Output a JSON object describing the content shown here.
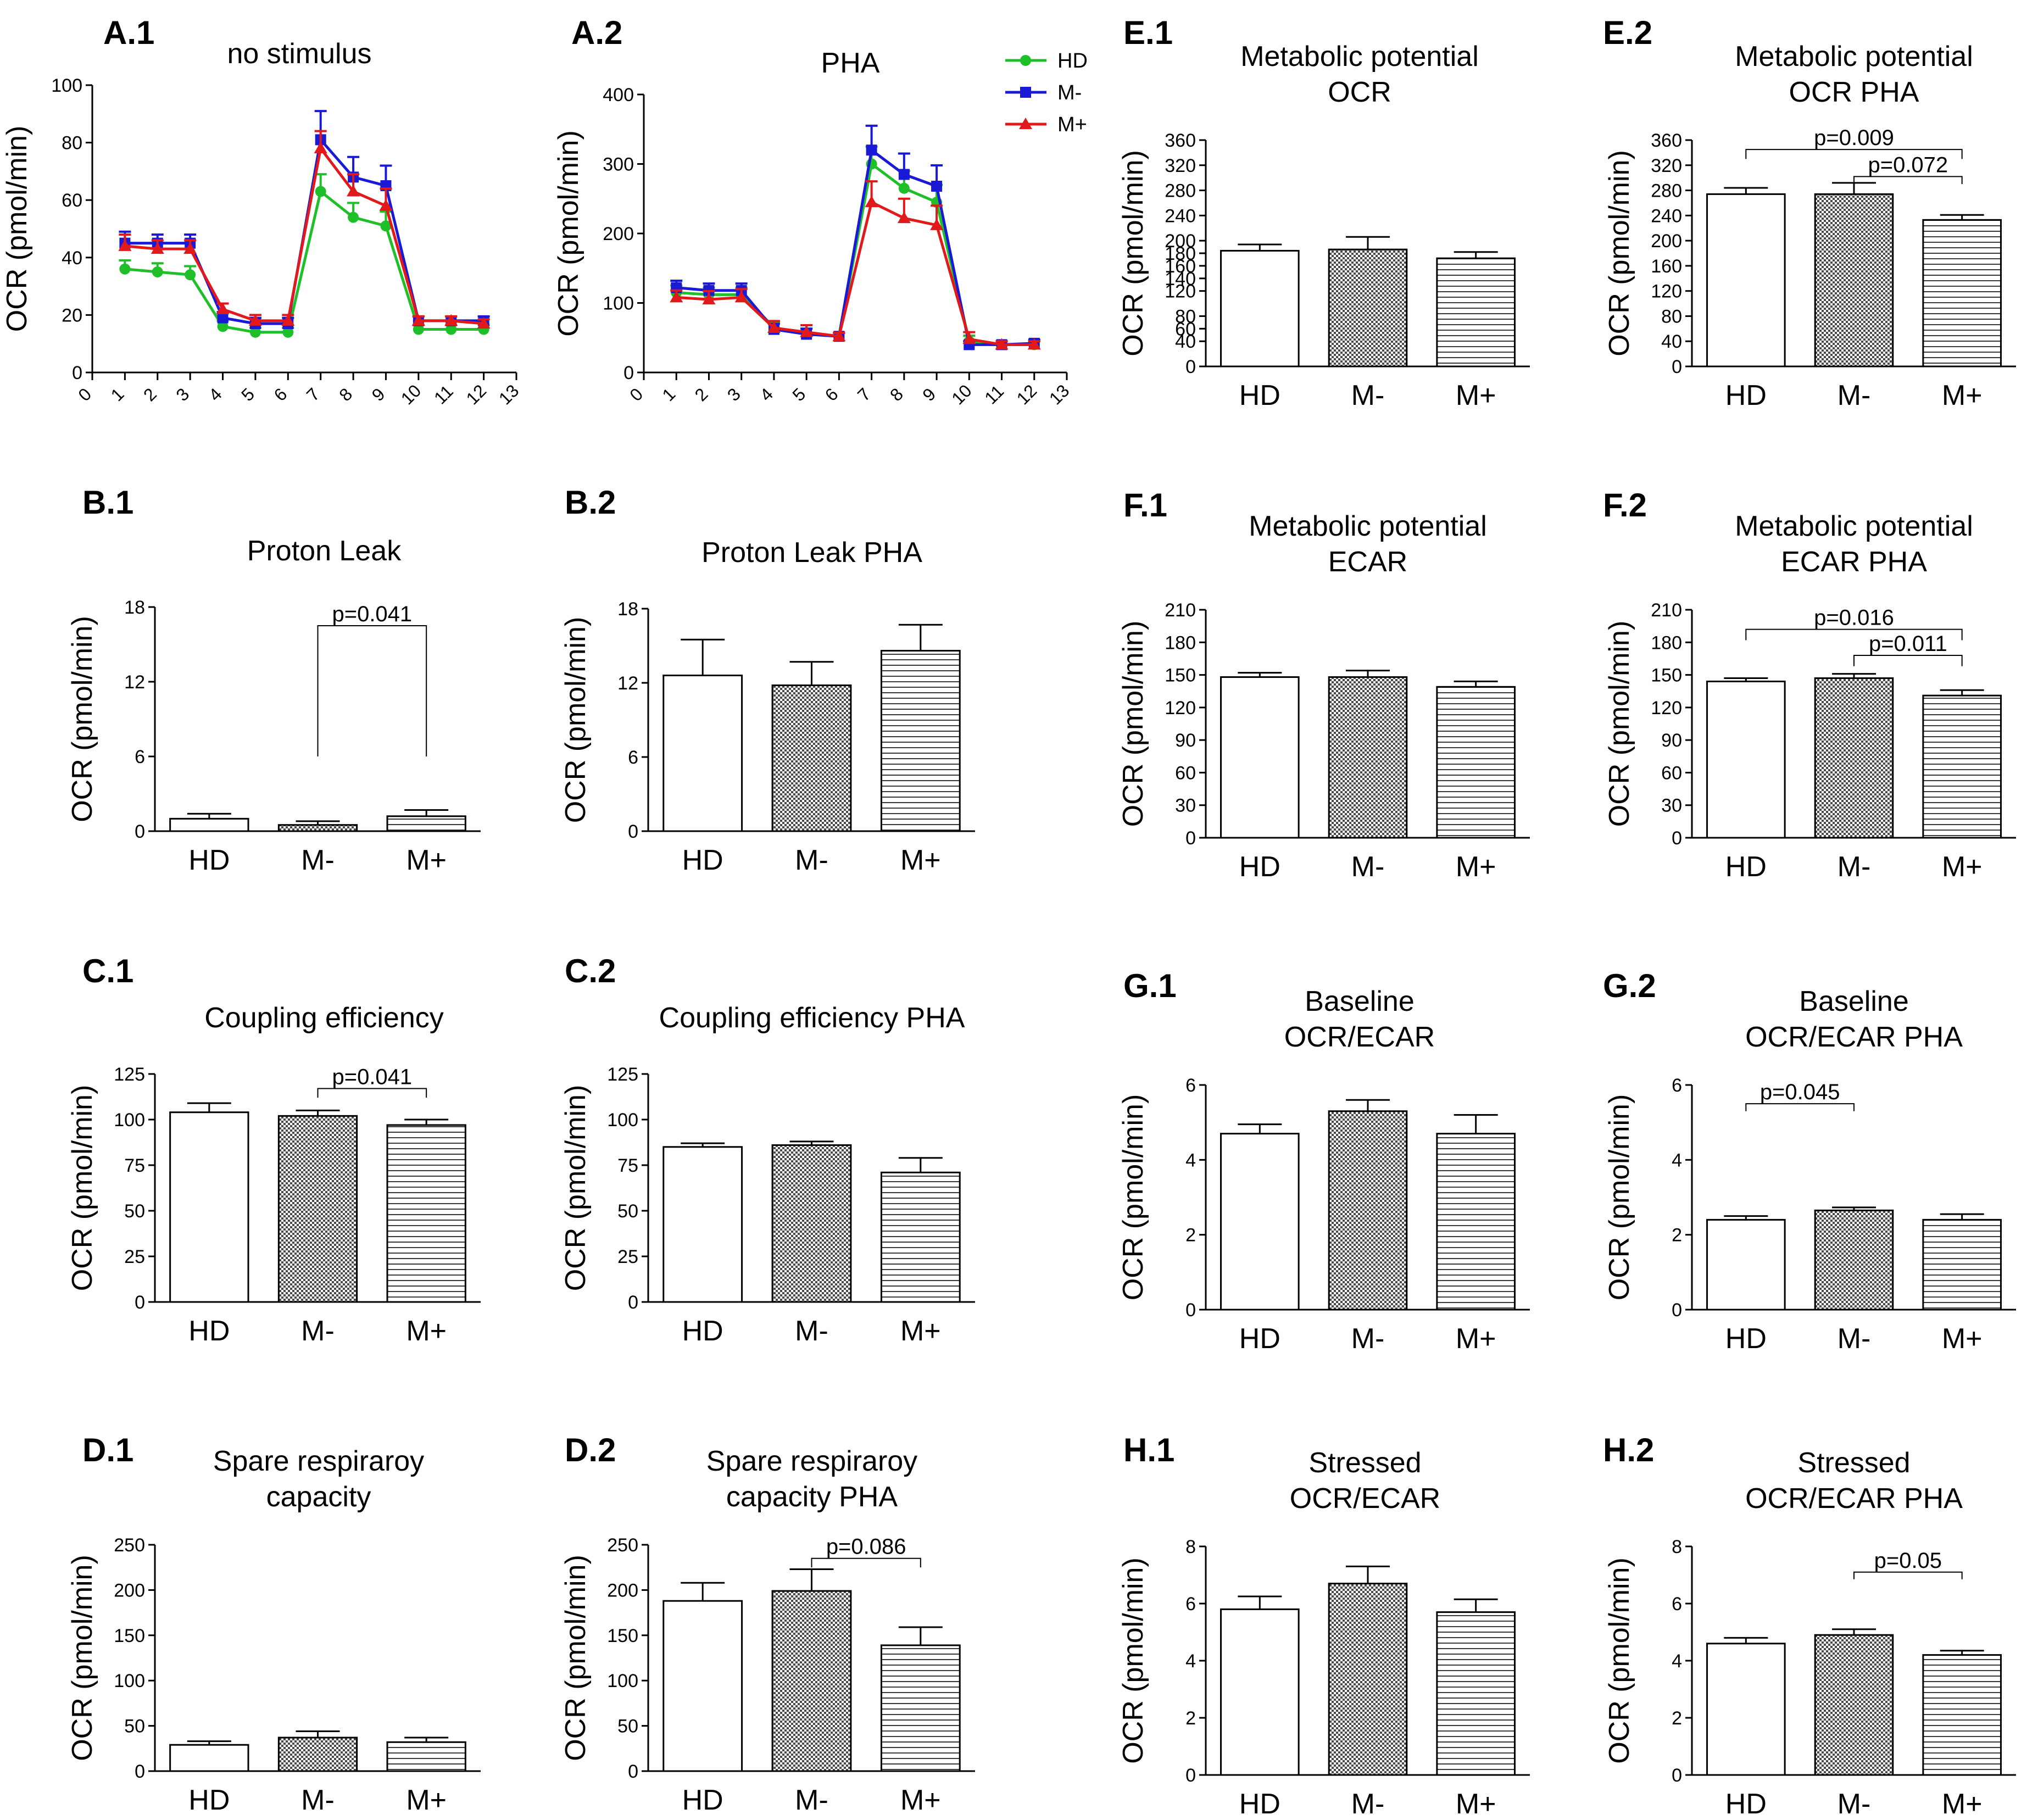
{
  "figure": {
    "colors": {
      "HD": "#1fbf2a",
      "M-": "#1a1ad6",
      "M+": "#e2191b",
      "axis": "#000000"
    },
    "groups": [
      "HD",
      "M-",
      "M+"
    ]
  },
  "chart_data": [
    {
      "id": "A1",
      "panel": "A.1",
      "type": "line",
      "title": [
        "no stimulus"
      ],
      "ylabel": "OCR (pmol/min)",
      "ylim": [
        0,
        100
      ],
      "yticks": [
        0,
        20,
        40,
        60,
        80,
        100
      ],
      "x": [
        1,
        2,
        3,
        4,
        5,
        6,
        7,
        8,
        9,
        10,
        11,
        12
      ],
      "xlim": [
        0,
        13
      ],
      "xticks": [
        "0",
        "1",
        "2",
        "3",
        "4",
        "5",
        "6",
        "7",
        "8",
        "9",
        "10",
        "11",
        "12",
        "13"
      ],
      "series": [
        {
          "name": "HD",
          "values": [
            36,
            35,
            34,
            16,
            14,
            14,
            63,
            54,
            51,
            15,
            15,
            15
          ],
          "errors": [
            3,
            3,
            3,
            2,
            1.5,
            1.5,
            6,
            5,
            5,
            1.5,
            1.5,
            1.5
          ]
        },
        {
          "name": "M-",
          "values": [
            45,
            45,
            45,
            19,
            17,
            17,
            81,
            68,
            65,
            18,
            18,
            18
          ],
          "errors": [
            4,
            3,
            3,
            2,
            2,
            2,
            10,
            7,
            7,
            1.5,
            1.5,
            1.5
          ]
        },
        {
          "name": "M+",
          "values": [
            44,
            43,
            43,
            22,
            18,
            18,
            78,
            63,
            58,
            18,
            18,
            17
          ],
          "errors": [
            4,
            3,
            3,
            2,
            2,
            2,
            6,
            6,
            6,
            1.5,
            1.5,
            1.5
          ]
        }
      ]
    },
    {
      "id": "A2",
      "panel": "A.2",
      "type": "line",
      "title": [
        "PHA"
      ],
      "ylabel": "OCR (pmol/min)",
      "ylim": [
        0,
        400
      ],
      "yticks": [
        0,
        100,
        200,
        300,
        400
      ],
      "x": [
        1,
        2,
        3,
        4,
        5,
        6,
        7,
        8,
        9,
        10,
        11,
        12
      ],
      "xlim": [
        0,
        13
      ],
      "xticks": [
        "0",
        "1",
        "2",
        "3",
        "4",
        "5",
        "6",
        "7",
        "8",
        "9",
        "10",
        "11",
        "12",
        "13"
      ],
      "legend": [
        "HD",
        "M-",
        "M+"
      ],
      "series": [
        {
          "name": "HD",
          "values": [
            115,
            112,
            112,
            65,
            55,
            52,
            300,
            265,
            245,
            45,
            40,
            40
          ],
          "errors": [
            10,
            10,
            10,
            8,
            8,
            5,
            25,
            25,
            25,
            8,
            5,
            5
          ]
        },
        {
          "name": "M-",
          "values": [
            122,
            118,
            118,
            62,
            55,
            52,
            320,
            285,
            268,
            40,
            40,
            42
          ],
          "errors": [
            10,
            10,
            10,
            8,
            8,
            5,
            35,
            30,
            30,
            5,
            5,
            5
          ]
        },
        {
          "name": "M+",
          "values": [
            108,
            105,
            108,
            64,
            58,
            52,
            245,
            222,
            212,
            48,
            40,
            40
          ],
          "errors": [
            10,
            12,
            12,
            10,
            10,
            5,
            30,
            28,
            28,
            10,
            5,
            5
          ]
        }
      ]
    },
    {
      "id": "B1",
      "panel": "B.1",
      "type": "bar",
      "title": [
        "Proton Leak"
      ],
      "ylabel": "OCR (pmol/min)",
      "ylim": [
        0,
        18
      ],
      "yticks": [
        0,
        6,
        12,
        18
      ],
      "categories": [
        "HD",
        "M-",
        "M+"
      ],
      "values": [
        1.0,
        0.5,
        1.2
      ],
      "errors": [
        0.4,
        0.3,
        0.5
      ],
      "annotations": [
        {
          "label": "p=0.041",
          "from": 1,
          "to": 2,
          "y": 16.5,
          "drop": 10.5
        }
      ]
    },
    {
      "id": "B2",
      "panel": "B.2",
      "type": "bar",
      "title": [
        "Proton Leak PHA"
      ],
      "ylabel": "OCR (pmol/min)",
      "ylim": [
        0,
        18
      ],
      "yticks": [
        0,
        6,
        12,
        18
      ],
      "categories": [
        "HD",
        "M-",
        "M+"
      ],
      "values": [
        12.6,
        11.8,
        14.6
      ],
      "errors": [
        2.9,
        1.9,
        2.1
      ],
      "annotations": []
    },
    {
      "id": "C1",
      "panel": "C.1",
      "type": "bar",
      "title": [
        "Coupling efficiency"
      ],
      "ylabel": "OCR (pmol/min)",
      "ylim": [
        0,
        125
      ],
      "yticks": [
        0,
        25,
        50,
        75,
        100,
        125
      ],
      "categories": [
        "HD",
        "M-",
        "M+"
      ],
      "values": [
        104,
        102,
        97
      ],
      "errors": [
        5,
        3,
        3
      ],
      "annotations": [
        {
          "label": "p=0.041",
          "from": 1,
          "to": 2,
          "y": 117,
          "drop": 5
        }
      ]
    },
    {
      "id": "C2",
      "panel": "C.2",
      "type": "bar",
      "title": [
        "Coupling efficiency PHA"
      ],
      "ylabel": "OCR (pmol/min)",
      "ylim": [
        0,
        125
      ],
      "yticks": [
        0,
        25,
        50,
        75,
        100,
        125
      ],
      "categories": [
        "HD",
        "M-",
        "M+"
      ],
      "values": [
        85,
        86,
        71
      ],
      "errors": [
        2,
        2,
        8
      ],
      "annotations": []
    },
    {
      "id": "D1",
      "panel": "D.1",
      "type": "bar",
      "title": [
        "Spare respiraroy",
        "capacity"
      ],
      "ylabel": "OCR (pmol/min)",
      "ylim": [
        0,
        250
      ],
      "yticks": [
        0,
        50,
        100,
        150,
        200,
        250
      ],
      "categories": [
        "HD",
        "M-",
        "M+"
      ],
      "values": [
        29,
        37,
        32
      ],
      "errors": [
        4,
        7,
        5
      ],
      "annotations": []
    },
    {
      "id": "D2",
      "panel": "D.2",
      "type": "bar",
      "title": [
        "Spare respiraroy",
        "capacity PHA"
      ],
      "ylabel": "OCR (pmol/min)",
      "ylim": [
        0,
        250
      ],
      "yticks": [
        0,
        50,
        100,
        150,
        200,
        250
      ],
      "categories": [
        "HD",
        "M-",
        "M+"
      ],
      "values": [
        188,
        199,
        139
      ],
      "errors": [
        20,
        24,
        20
      ],
      "annotations": [
        {
          "label": "p=0.086",
          "from": 1,
          "to": 2,
          "y": 235,
          "drop": 10
        }
      ]
    },
    {
      "id": "E1",
      "panel": "E.1",
      "type": "bar",
      "title": [
        "Metabolic potential",
        "OCR"
      ],
      "ylabel": "OCR (pmol/min)",
      "ylim": [
        0,
        360
      ],
      "yticks": [
        0,
        40,
        60,
        80,
        120,
        140,
        160,
        180,
        200,
        240,
        280,
        320,
        360
      ],
      "categories": [
        "HD",
        "M-",
        "M+"
      ],
      "values": [
        184,
        186,
        172
      ],
      "errors": [
        10,
        20,
        10
      ],
      "annotations": []
    },
    {
      "id": "E2",
      "panel": "E.2",
      "type": "bar",
      "title": [
        "Metabolic potential",
        "OCR PHA"
      ],
      "ylabel": "OCR (pmol/min)",
      "ylim": [
        0,
        360
      ],
      "yticks": [
        0,
        40,
        80,
        120,
        160,
        200,
        240,
        280,
        320,
        360
      ],
      "categories": [
        "HD",
        "M-",
        "M+"
      ],
      "values": [
        274,
        274,
        233
      ],
      "errors": [
        10,
        18,
        8
      ],
      "annotations": [
        {
          "label": "p=0.009",
          "from": 0,
          "to": 2,
          "y": 345,
          "drop": 15
        },
        {
          "label": "p=0.072",
          "from": 1,
          "to": 2,
          "y": 302,
          "drop": 12
        }
      ]
    },
    {
      "id": "F1",
      "panel": "F.1",
      "type": "bar",
      "title": [
        "Metabolic potential",
        "ECAR"
      ],
      "ylabel": "OCR (pmol/min)",
      "ylim": [
        0,
        210
      ],
      "yticks": [
        0,
        30,
        60,
        90,
        120,
        150,
        180,
        210
      ],
      "categories": [
        "HD",
        "M-",
        "M+"
      ],
      "values": [
        148,
        148,
        139
      ],
      "errors": [
        4,
        6,
        5
      ],
      "annotations": []
    },
    {
      "id": "F2",
      "panel": "F.2",
      "type": "bar",
      "title": [
        "Metabolic potential",
        "ECAR PHA"
      ],
      "ylabel": "OCR (pmol/min)",
      "ylim": [
        0,
        210
      ],
      "yticks": [
        0,
        30,
        60,
        90,
        120,
        150,
        180,
        210
      ],
      "categories": [
        "HD",
        "M-",
        "M+"
      ],
      "values": [
        144,
        147,
        131
      ],
      "errors": [
        3,
        4,
        5
      ],
      "annotations": [
        {
          "label": "p=0.016",
          "from": 0,
          "to": 2,
          "y": 192,
          "drop": 10
        },
        {
          "label": "p=0.011",
          "from": 1,
          "to": 2,
          "y": 168,
          "drop": 10
        }
      ]
    },
    {
      "id": "G1",
      "panel": "G.1",
      "type": "bar",
      "title": [
        "Baseline",
        "OCR/ECAR"
      ],
      "ylabel": "OCR (pmol/min)",
      "ylim": [
        0,
        6
      ],
      "yticks": [
        0,
        2,
        4,
        6
      ],
      "categories": [
        "HD",
        "M-",
        "M+"
      ],
      "values": [
        4.7,
        5.3,
        4.7
      ],
      "errors": [
        0.25,
        0.3,
        0.5
      ],
      "annotations": []
    },
    {
      "id": "G2",
      "panel": "G.2",
      "type": "bar",
      "title": [
        "Baseline",
        "OCR/ECAR PHA"
      ],
      "ylabel": "OCR (pmol/min)",
      "ylim": [
        0,
        6
      ],
      "yticks": [
        0,
        2,
        4,
        6
      ],
      "categories": [
        "HD",
        "M-",
        "M+"
      ],
      "values": [
        2.4,
        2.65,
        2.4
      ],
      "errors": [
        0.1,
        0.08,
        0.15
      ],
      "annotations": [
        {
          "label": "p=0.045",
          "from": 0,
          "to": 1,
          "y": 5.5,
          "drop": 0.2
        }
      ]
    },
    {
      "id": "H1",
      "panel": "H.1",
      "type": "bar",
      "title": [
        "Stressed",
        "OCR/ECAR"
      ],
      "ylabel": "OCR (pmol/min)",
      "ylim": [
        0,
        8
      ],
      "yticks": [
        0,
        2,
        4,
        6,
        8
      ],
      "categories": [
        "HD",
        "M-",
        "M+"
      ],
      "values": [
        5.8,
        6.7,
        5.7
      ],
      "errors": [
        0.45,
        0.6,
        0.45
      ],
      "annotations": []
    },
    {
      "id": "H2",
      "panel": "H.2",
      "type": "bar",
      "title": [
        "Stressed",
        "OCR/ECAR PHA"
      ],
      "ylabel": "OCR (pmol/min)",
      "ylim": [
        0,
        8
      ],
      "yticks": [
        0,
        2,
        4,
        6,
        8
      ],
      "categories": [
        "HD",
        "M-",
        "M+"
      ],
      "values": [
        4.6,
        4.9,
        4.2
      ],
      "errors": [
        0.2,
        0.2,
        0.15
      ],
      "annotations": [
        {
          "label": "p=0.05",
          "from": 1,
          "to": 2,
          "y": 7.1,
          "drop": 0.25
        }
      ]
    }
  ]
}
